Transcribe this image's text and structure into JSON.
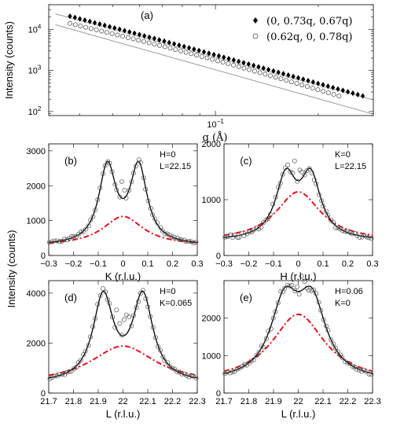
{
  "figure": {
    "shared_ylabel": "Intensity (counts)"
  },
  "chart_data": [
    {
      "id": "a",
      "label": "(a)",
      "type": "scatter",
      "xscale": "log",
      "yscale": "log",
      "xlabel": "q (Å)",
      "ylabel": "Intensity (counts)",
      "xlim": [
        0.0325,
        0.29
      ],
      "ylim": [
        80,
        40000
      ],
      "x_tick_labels": [
        {
          "x": 0.1,
          "label": "10",
          "exp": "−1"
        }
      ],
      "y_tick_labels": [
        {
          "y": 100,
          "label": "10",
          "exp": "2"
        },
        {
          "y": 1000,
          "label": "10",
          "exp": "3"
        },
        {
          "y": 10000,
          "label": "10",
          "exp": "4"
        }
      ],
      "legend_position": "top-right",
      "series": [
        {
          "name": "(0, 0.73q, 0.67q)",
          "marker": "filled-diamond",
          "x_range": [
            0.0375,
            0.27
          ],
          "y_start": 21000,
          "y_end": 240,
          "count": 60,
          "fit": {
            "y_start": 24000,
            "y_end": 200
          }
        },
        {
          "name": "(0.62q, 0, 0.78q)",
          "marker": "open-circle",
          "x_range": [
            0.0375,
            0.23
          ],
          "y_start": 14000,
          "y_end": 240,
          "count": 52,
          "fit": {
            "y_start": 13000,
            "y_end": 90
          }
        }
      ]
    },
    {
      "id": "b",
      "label": "(b)",
      "type": "scatter",
      "xlabel": "K (r.l.u.)",
      "xlim": [
        -0.3,
        0.3
      ],
      "ylim": [
        0,
        3200
      ],
      "xticks": [
        -0.3,
        -0.2,
        -0.1,
        0,
        0.1,
        0.2,
        0.3
      ],
      "yticks": [
        0,
        1000,
        2000,
        3000
      ],
      "annotations": [
        "H=0",
        "L=22.15"
      ],
      "model": {
        "center": 0,
        "peak_offset": 0.063,
        "peak_height": 2200,
        "peak_width": 0.042,
        "background": 280,
        "single_height": 840,
        "single_width": 0.1
      }
    },
    {
      "id": "c",
      "label": "(c)",
      "type": "scatter",
      "xlabel": "H (r.l.u.)",
      "xlim": [
        -0.3,
        0.3
      ],
      "ylim": [
        0,
        2000
      ],
      "xticks": [
        -0.3,
        -0.2,
        -0.1,
        0,
        0.1,
        0.2,
        0.3
      ],
      "yticks": [
        0,
        1000,
        2000
      ],
      "annotations": [
        "K=0",
        "L=22.15"
      ],
      "model": {
        "center": 0,
        "peak_offset": 0.05,
        "peak_height": 1080,
        "peak_width": 0.05,
        "background": 260,
        "single_height": 880,
        "single_width": 0.11
      }
    },
    {
      "id": "d",
      "label": "(d)",
      "type": "scatter",
      "xlabel": "L (r.l.u.)",
      "xlim": [
        21.7,
        22.3
      ],
      "ylim": [
        0,
        4500
      ],
      "xticks": [
        21.7,
        21.8,
        21.9,
        22,
        22.1,
        22.2,
        22.3
      ],
      "yticks": [
        0,
        2000,
        4000
      ],
      "annotations": [
        "H=0",
        "K=0.065"
      ],
      "model": {
        "center": 22.0,
        "peak_offset": 0.08,
        "peak_height": 3400,
        "peak_width": 0.05,
        "background": 380,
        "single_height": 1500,
        "single_width": 0.16
      }
    },
    {
      "id": "e",
      "label": "(e)",
      "type": "scatter",
      "xlabel": "L (r.l.u.)",
      "xlim": [
        21.7,
        22.3
      ],
      "ylim": [
        0,
        3000
      ],
      "xticks": [
        21.7,
        21.8,
        21.9,
        22,
        22.1,
        22.2,
        22.3
      ],
      "yticks": [
        0,
        1000,
        2000
      ],
      "annotations": [
        "H=0.06",
        "K=0"
      ],
      "model": {
        "center": 22.0,
        "peak_offset": 0.055,
        "peak_height": 1950,
        "peak_width": 0.07,
        "background": 300,
        "single_height": 1800,
        "single_width": 0.13
      }
    }
  ]
}
